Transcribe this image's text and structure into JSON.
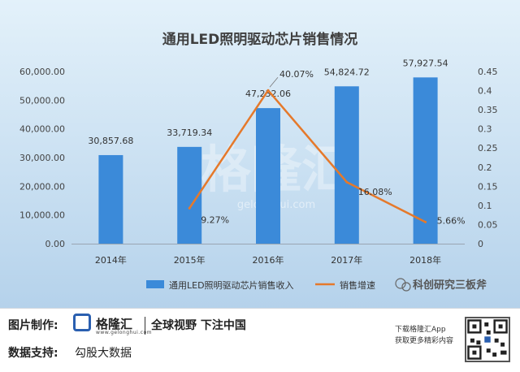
{
  "chart_data": {
    "type": "bar",
    "title": "通用LED照明驱动芯片销售情况",
    "categories": [
      "2014年",
      "2015年",
      "2016年",
      "2017年",
      "2018年"
    ],
    "series": [
      {
        "name": "通用LED照明驱动芯片销售收入",
        "type": "bar",
        "axis": "left",
        "values": [
          30857.68,
          33719.34,
          47232.06,
          54824.72,
          57927.54
        ],
        "labels": [
          "30,857.68",
          "33,719.34",
          "47,232.06",
          "54,824.72",
          "57,927.54"
        ],
        "color": "#3b8ad9"
      },
      {
        "name": "销售增速",
        "type": "line",
        "axis": "right",
        "values": [
          null,
          0.0927,
          0.4007,
          0.1608,
          0.0566
        ],
        "labels": [
          "",
          "9.27%",
          "40.07%",
          "16.08%",
          "5.66%"
        ],
        "color": "#e5792b"
      }
    ],
    "y_left": {
      "min": 0,
      "max": 60000,
      "step": 10000,
      "tick_labels": [
        "0.00",
        "10,000.00",
        "20,000.00",
        "30,000.00",
        "40,000.00",
        "50,000.00",
        "60,000.00"
      ]
    },
    "y_right": {
      "min": 0,
      "max": 0.45,
      "step": 0.05,
      "tick_labels": [
        "0",
        "0.05",
        "0.1",
        "0.15",
        "0.2",
        "0.25",
        "0.3",
        "0.35",
        "0.4",
        "0.45"
      ]
    },
    "legend_position": "bottom",
    "grid": false
  },
  "watermark": {
    "text": "格隆汇",
    "domain": "gelonghui.com"
  },
  "social_badge": "科创研究三板斧",
  "footer": {
    "credit_label": "图片制作:",
    "logo_text": "格隆汇",
    "logo_domain": "www.gelonghui.com",
    "slogan": "全球视野 下注中国",
    "data_label": "数据支持:",
    "data_source": "勾股大数据",
    "app_line1": "下载格隆汇App",
    "app_line2": "获取更多精彩内容"
  },
  "colors": {
    "background_top": "#dcedf8",
    "background_bottom": "#b7d3ec",
    "bar": "#3b8ad9",
    "line": "#e5792b"
  }
}
